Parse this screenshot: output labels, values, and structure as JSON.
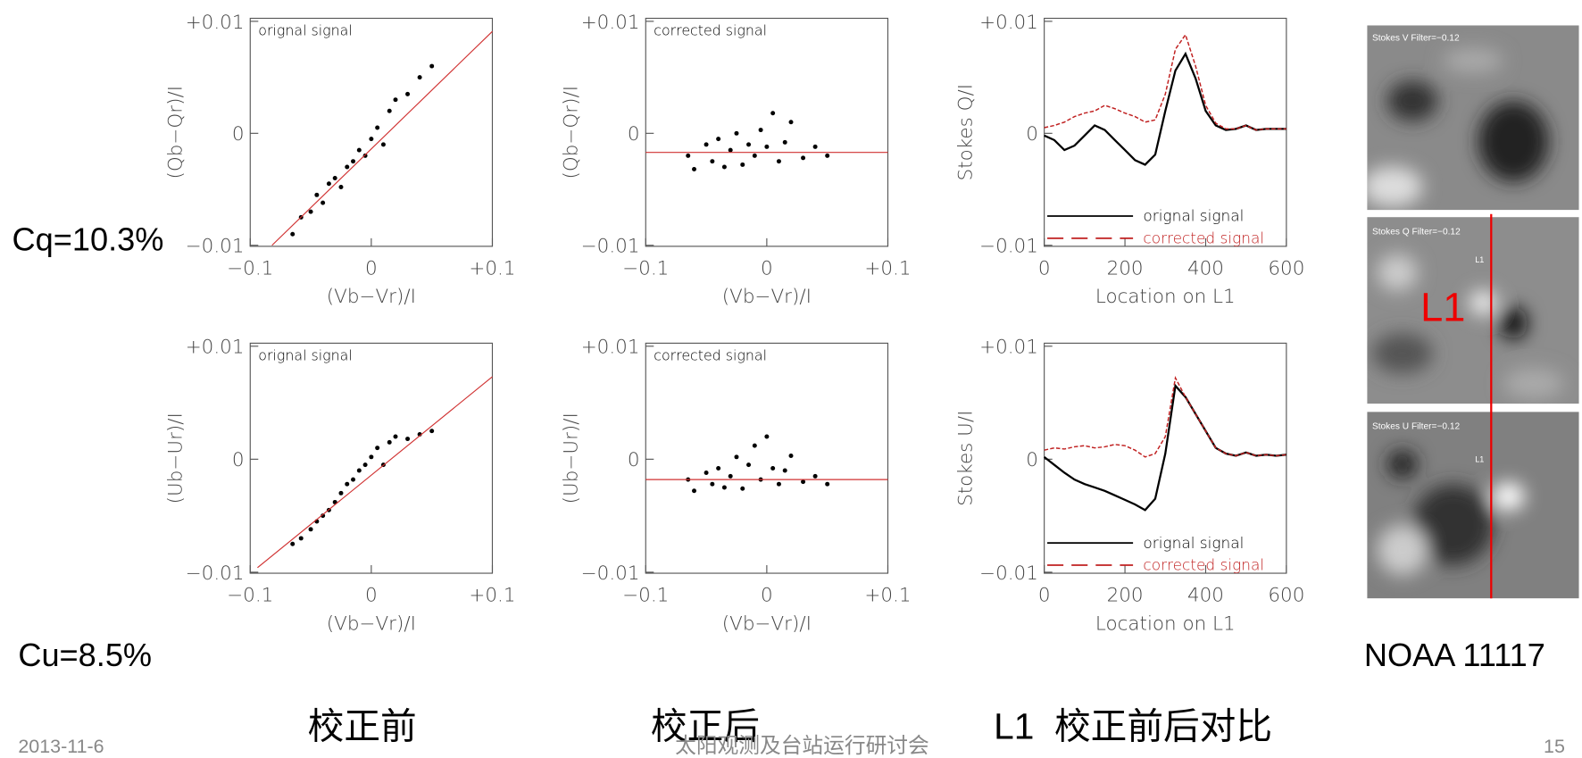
{
  "slide": {
    "cq": "Cq=10.3%",
    "cu": "Cu=8.5%",
    "caption_before": "校正前",
    "caption_after": "校正后",
    "caption_compare": "L1  校正前后对比",
    "region": "NOAA 11117",
    "date": "2013-11-6",
    "footer": "太阳观测及台站运行研讨会",
    "page": "15",
    "images": [
      {
        "label": "Stokes V  Filter=−0.12"
      },
      {
        "label": "Stokes Q  Filter=−0.12",
        "marker": "L1",
        "big_marker": "L1"
      },
      {
        "label": "Stokes U  Filter=−0.12",
        "marker": "L1"
      }
    ]
  },
  "chart_data": [
    {
      "type": "scatter",
      "panel_label": "orignal signal",
      "xlabel": "(Vb−Vr)/I",
      "ylabel": "(Qb−Qr)/I",
      "color": "#000000",
      "fit_color": "#d03030",
      "xlim": [
        -0.1,
        0.1
      ],
      "ylim": [
        -0.01,
        0.01
      ],
      "xticks": [
        {
          "value": -0.1,
          "label": "−0.1"
        },
        0,
        {
          "value": 0.1,
          "label": "+0.1"
        }
      ],
      "yticks": [
        {
          "value": 0.01,
          "label": "+0.01"
        },
        0,
        {
          "value": -0.01,
          "label": "−0.01"
        }
      ],
      "x": [
        -0.065,
        -0.058,
        -0.05,
        -0.045,
        -0.04,
        -0.035,
        -0.03,
        -0.025,
        -0.02,
        -0.015,
        -0.01,
        -0.005,
        0,
        0.005,
        0.01,
        0.015,
        0.02,
        0.03,
        0.04,
        0.05
      ],
      "values": [
        -0.009,
        -0.0075,
        -0.007,
        -0.0055,
        -0.0062,
        -0.0045,
        -0.004,
        -0.0048,
        -0.003,
        -0.0025,
        -0.0015,
        -0.002,
        -0.0005,
        0.0005,
        -0.001,
        0.002,
        0.003,
        0.0035,
        0.005,
        0.006
      ],
      "fit": {
        "x": [
          -0.082,
          0.1
        ],
        "values": [
          -0.01,
          0.0091
        ]
      }
    },
    {
      "type": "scatter",
      "panel_label": "corrected signal",
      "xlabel": "(Vb−Vr)/I",
      "ylabel": "(Qb−Qr)/I",
      "color": "#000000",
      "fit_color": "#d03030",
      "xlim": [
        -0.1,
        0.1
      ],
      "ylim": [
        -0.01,
        0.01
      ],
      "xticks": [
        {
          "value": -0.1,
          "label": "−0.1"
        },
        0,
        {
          "value": 0.1,
          "label": "+0.1"
        }
      ],
      "yticks": [
        {
          "value": 0.01,
          "label": "+0.01"
        },
        0,
        {
          "value": -0.01,
          "label": "−0.01"
        }
      ],
      "x": [
        -0.065,
        -0.06,
        -0.05,
        -0.045,
        -0.04,
        -0.035,
        -0.03,
        -0.025,
        -0.02,
        -0.015,
        -0.01,
        -0.005,
        0,
        0.005,
        0.01,
        0.015,
        0.02,
        0.03,
        0.04,
        0.05
      ],
      "values": [
        -0.002,
        -0.0032,
        -0.001,
        -0.0025,
        -0.0005,
        -0.003,
        -0.0015,
        0,
        -0.0028,
        -0.001,
        -0.002,
        0.0003,
        -0.0012,
        0.0018,
        -0.0025,
        -0.0008,
        0.001,
        -0.0022,
        -0.0012,
        -0.002
      ],
      "fit": {
        "x": [
          -0.1,
          0.1
        ],
        "values": [
          -0.0017,
          -0.0017
        ]
      }
    },
    {
      "type": "line",
      "xlabel": "Location on L1",
      "ylabel": "Stokes Q/I",
      "legend": "lower right",
      "xlim": [
        0,
        600
      ],
      "ylim": [
        -0.01,
        0.01
      ],
      "xticks": [
        0,
        200,
        400,
        600
      ],
      "yticks": [
        {
          "value": 0.01,
          "label": "+0.01"
        },
        0,
        {
          "value": -0.01,
          "label": "−0.01"
        }
      ],
      "x": [
        0,
        25,
        50,
        75,
        100,
        125,
        150,
        175,
        200,
        225,
        250,
        275,
        300,
        325,
        350,
        375,
        400,
        425,
        450,
        475,
        500,
        525,
        550,
        575,
        600
      ],
      "series": [
        {
          "name": "orignal signal",
          "color": "#000000",
          "dash": false,
          "values": [
            -0.0002,
            -0.0006,
            -0.0015,
            -0.0011,
            -0.0002,
            0.0007,
            0.0003,
            -0.0006,
            -0.0015,
            -0.0024,
            -0.0028,
            -0.0019,
            0.002,
            0.0056,
            0.0071,
            0.0049,
            0.002,
            0.0007,
            0.0003,
            0.0004,
            0.0007,
            0.0003,
            0.0004,
            0.0004,
            0.0004
          ]
        },
        {
          "name": "corrected signal",
          "color": "#c02020",
          "dash": true,
          "values": [
            0.0005,
            0.0007,
            0.001,
            0.0015,
            0.0018,
            0.002,
            0.0025,
            0.0022,
            0.0018,
            0.0015,
            0.001,
            0.0012,
            0.0035,
            0.0075,
            0.0088,
            0.006,
            0.0025,
            0.0009,
            0.0004,
            0.0004,
            0.0007,
            0.0003,
            0.0004,
            0.0004,
            0.0004
          ]
        }
      ]
    },
    {
      "type": "scatter",
      "panel_label": "orignal signal",
      "xlabel": "(Vb−Vr)/I",
      "ylabel": "(Ub−Ur)/I",
      "color": "#000000",
      "fit_color": "#d03030",
      "xlim": [
        -0.1,
        0.1
      ],
      "ylim": [
        -0.01,
        0.01
      ],
      "xticks": [
        {
          "value": -0.1,
          "label": "−0.1"
        },
        0,
        {
          "value": 0.1,
          "label": "+0.1"
        }
      ],
      "yticks": [
        {
          "value": 0.01,
          "label": "+0.01"
        },
        0,
        {
          "value": -0.01,
          "label": "−0.01"
        }
      ],
      "x": [
        -0.065,
        -0.058,
        -0.05,
        -0.045,
        -0.04,
        -0.035,
        -0.03,
        -0.025,
        -0.02,
        -0.015,
        -0.01,
        -0.005,
        0,
        0.005,
        0.01,
        0.015,
        0.02,
        0.03,
        0.04,
        0.05
      ],
      "values": [
        -0.0075,
        -0.007,
        -0.0062,
        -0.0055,
        -0.005,
        -0.0045,
        -0.0038,
        -0.003,
        -0.0022,
        -0.0018,
        -0.001,
        -0.0005,
        0.0002,
        0.001,
        -0.0005,
        0.0015,
        0.002,
        0.0018,
        0.0022,
        0.0025
      ],
      "fit": {
        "x": [
          -0.094,
          0.1
        ],
        "values": [
          -0.0096,
          0.0073
        ]
      }
    },
    {
      "type": "scatter",
      "panel_label": "corrected signal",
      "xlabel": "(Vb−Vr)/I",
      "ylabel": "(Ub−Ur)/I",
      "color": "#000000",
      "fit_color": "#d03030",
      "xlim": [
        -0.1,
        0.1
      ],
      "ylim": [
        -0.01,
        0.01
      ],
      "xticks": [
        {
          "value": -0.1,
          "label": "−0.1"
        },
        0,
        {
          "value": 0.1,
          "label": "+0.1"
        }
      ],
      "yticks": [
        {
          "value": 0.01,
          "label": "+0.01"
        },
        0,
        {
          "value": -0.01,
          "label": "−0.01"
        }
      ],
      "x": [
        -0.065,
        -0.06,
        -0.05,
        -0.045,
        -0.04,
        -0.035,
        -0.03,
        -0.025,
        -0.02,
        -0.015,
        -0.01,
        -0.005,
        0,
        0.005,
        0.01,
        0.015,
        0.02,
        0.03,
        0.04,
        0.05
      ],
      "values": [
        -0.0018,
        -0.0028,
        -0.0012,
        -0.0022,
        -0.0008,
        -0.0025,
        -0.0015,
        0.0002,
        -0.0026,
        -0.0005,
        0.0012,
        -0.0018,
        0.002,
        -0.0008,
        -0.0022,
        -0.001,
        0.0003,
        -0.002,
        -0.0015,
        -0.0022
      ],
      "fit": {
        "x": [
          -0.1,
          0.1
        ],
        "values": [
          -0.0018,
          -0.0018
        ]
      }
    },
    {
      "type": "line",
      "xlabel": "Location on L1",
      "ylabel": "Stokes U/I",
      "legend": "lower right",
      "xlim": [
        0,
        600
      ],
      "ylim": [
        -0.01,
        0.01
      ],
      "xticks": [
        0,
        200,
        400,
        600
      ],
      "yticks": [
        {
          "value": 0.01,
          "label": "+0.01"
        },
        0,
        {
          "value": -0.01,
          "label": "−0.01"
        }
      ],
      "x": [
        0,
        25,
        50,
        75,
        100,
        125,
        150,
        175,
        200,
        225,
        250,
        275,
        300,
        325,
        350,
        375,
        400,
        425,
        450,
        475,
        500,
        525,
        550,
        575,
        600
      ],
      "series": [
        {
          "name": "orignal signal",
          "color": "#000000",
          "dash": false,
          "values": [
            0.0002,
            -0.0005,
            -0.0012,
            -0.0018,
            -0.0022,
            -0.0025,
            -0.0028,
            -0.0032,
            -0.0036,
            -0.004,
            -0.0045,
            -0.0035,
            0.0005,
            0.0065,
            0.0055,
            0.004,
            0.0025,
            0.001,
            0.0005,
            0.0003,
            0.0006,
            0.0003,
            0.0004,
            0.0003,
            0.0004
          ]
        },
        {
          "name": "corrected signal",
          "color": "#c02020",
          "dash": true,
          "values": [
            0.0008,
            0.001,
            0.0009,
            0.0011,
            0.0012,
            0.001,
            0.0011,
            0.0013,
            0.0012,
            0.0008,
            0.0002,
            0.0005,
            0.002,
            0.0072,
            0.0055,
            0.004,
            0.0025,
            0.001,
            0.0005,
            0.0003,
            0.0006,
            0.0003,
            0.0004,
            0.0003,
            0.0004
          ]
        }
      ]
    }
  ]
}
